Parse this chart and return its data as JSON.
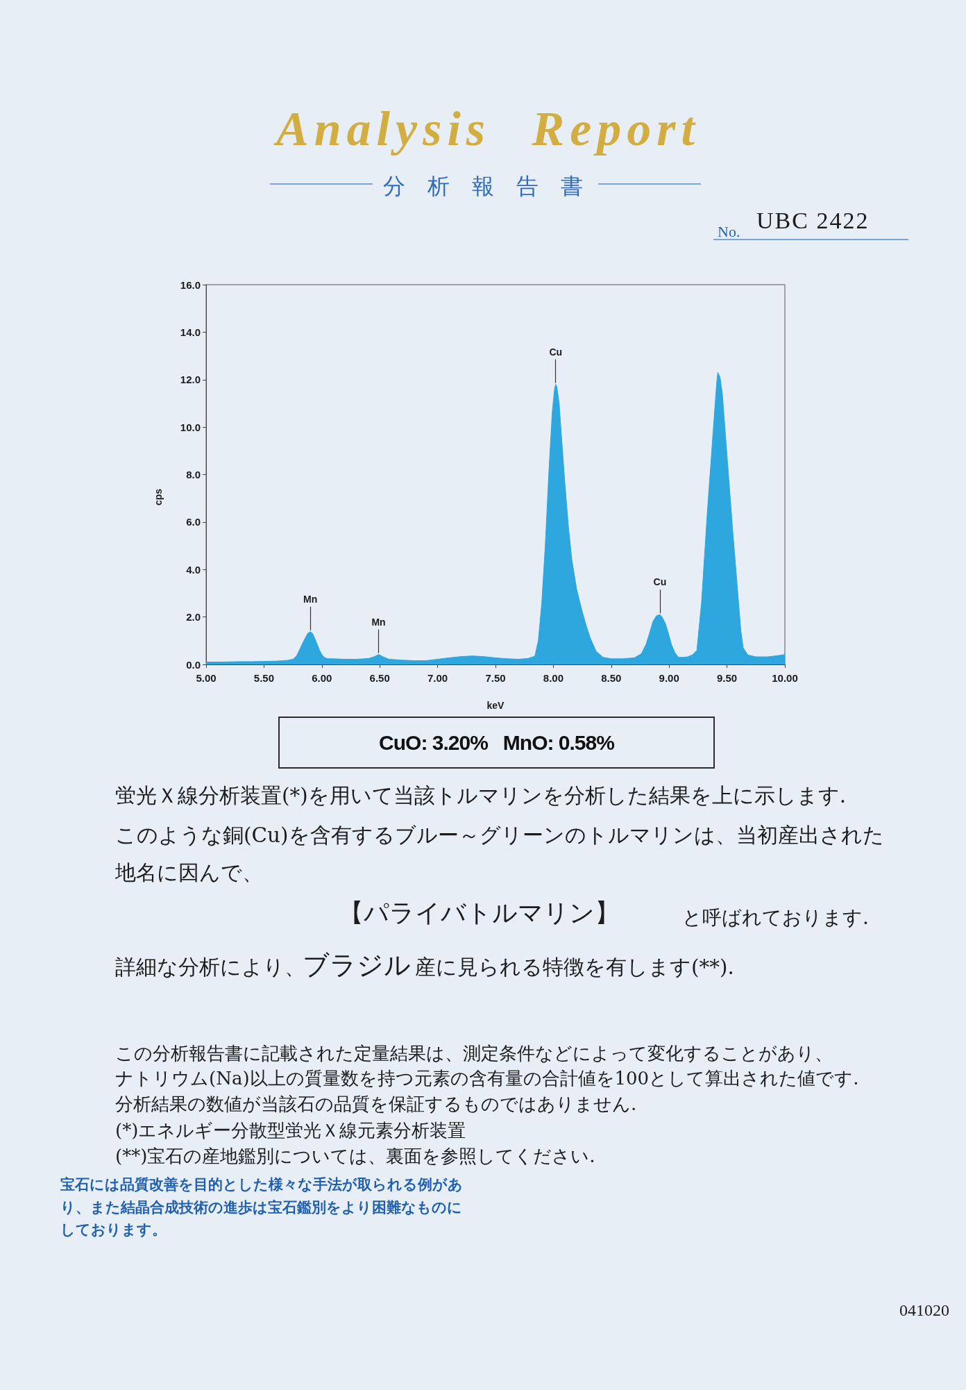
{
  "chart_data": {
    "type": "area",
    "title": "Analysis Report",
    "subtitle": "分析報告書",
    "xlabel": "keV",
    "ylabel": "cps",
    "color": "#2ea6de",
    "grid": false,
    "x": [
      5.0,
      5.1,
      5.2,
      5.3,
      5.4,
      5.5,
      5.6,
      5.7,
      5.75,
      5.78,
      5.8,
      5.82,
      5.84,
      5.86,
      5.88,
      5.9,
      5.92,
      5.94,
      5.96,
      5.98,
      6.0,
      6.02,
      6.05,
      6.1,
      6.2,
      6.3,
      6.4,
      6.45,
      6.49,
      6.53,
      6.58,
      6.7,
      6.8,
      6.9,
      7.0,
      7.1,
      7.2,
      7.3,
      7.4,
      7.5,
      7.6,
      7.7,
      7.78,
      7.84,
      7.87,
      7.9,
      7.93,
      7.96,
      7.99,
      8.01,
      8.02,
      8.03,
      8.05,
      8.07,
      8.1,
      8.13,
      8.16,
      8.2,
      8.24,
      8.28,
      8.32,
      8.37,
      8.43,
      8.5,
      8.6,
      8.7,
      8.76,
      8.8,
      8.83,
      8.86,
      8.89,
      8.92,
      8.94,
      8.97,
      9.0,
      9.02,
      9.05,
      9.08,
      9.12,
      9.16,
      9.2,
      9.24,
      9.28,
      9.33,
      9.38,
      9.41,
      9.42,
      9.44,
      9.46,
      9.5,
      9.55,
      9.59,
      9.62,
      9.64,
      9.68,
      9.75,
      9.85,
      9.95,
      10.0
    ],
    "values": [
      0.1,
      0.1,
      0.11,
      0.12,
      0.12,
      0.13,
      0.14,
      0.17,
      0.22,
      0.35,
      0.54,
      0.75,
      0.96,
      1.15,
      1.32,
      1.38,
      1.3,
      1.08,
      0.85,
      0.6,
      0.42,
      0.3,
      0.24,
      0.24,
      0.22,
      0.22,
      0.25,
      0.32,
      0.42,
      0.32,
      0.22,
      0.18,
      0.16,
      0.16,
      0.22,
      0.28,
      0.33,
      0.36,
      0.33,
      0.28,
      0.24,
      0.22,
      0.25,
      0.35,
      1.0,
      2.6,
      5.0,
      8.0,
      10.6,
      11.6,
      11.8,
      11.7,
      11.0,
      9.6,
      7.6,
      5.8,
      4.4,
      3.2,
      2.4,
      1.7,
      1.1,
      0.55,
      0.3,
      0.24,
      0.24,
      0.28,
      0.45,
      0.84,
      1.3,
      1.8,
      2.05,
      2.1,
      2.0,
      1.7,
      1.2,
      0.84,
      0.5,
      0.3,
      0.3,
      0.32,
      0.4,
      0.6,
      2.6,
      6.4,
      9.8,
      11.8,
      12.3,
      12.1,
      11.4,
      8.8,
      5.6,
      3.2,
      1.4,
      0.7,
      0.4,
      0.32,
      0.32,
      0.38,
      0.42
    ],
    "xlim": [
      5,
      10
    ],
    "xticks": [
      {
        "value": 5,
        "label": "5.00"
      },
      {
        "value": 5.5,
        "label": "5.50"
      },
      {
        "value": 6,
        "label": "6.00"
      },
      {
        "value": 6.5,
        "label": "6.50"
      },
      {
        "value": 7,
        "label": "7.00"
      },
      {
        "value": 7.5,
        "label": "7.50"
      },
      {
        "value": 8,
        "label": "8.00"
      },
      {
        "value": 8.5,
        "label": "8.50"
      },
      {
        "value": 9,
        "label": "9.00"
      },
      {
        "value": 9.5,
        "label": "9.50"
      },
      {
        "value": 10,
        "label": "10.00"
      }
    ],
    "ylim": [
      0,
      16
    ],
    "yticks": [
      {
        "value": 0,
        "label": "0.0"
      },
      {
        "value": 2,
        "label": "2.0"
      },
      {
        "value": 4,
        "label": "4.0"
      },
      {
        "value": 6,
        "label": "6.0"
      },
      {
        "value": 8,
        "label": "8.0"
      },
      {
        "value": 10,
        "label": "10.0"
      },
      {
        "value": 12,
        "label": "12.0"
      },
      {
        "value": 14,
        "label": "14.0"
      },
      {
        "value": 16,
        "label": "16.0"
      }
    ],
    "annotations": [
      {
        "text": "Mn",
        "x": 5.9,
        "y": 1.38
      },
      {
        "text": "Mn",
        "x": 6.49,
        "y": 0.42
      },
      {
        "text": "Cu",
        "x": 8.02,
        "y": 11.8
      },
      {
        "text": "Cu",
        "x": 8.92,
        "y": 2.1
      },
      "No.",
      "UBC 2422",
      "CuO: 3.20%   MnO: 0.58%",
      "蛍光Ｘ線分析装置(*)を用いて当該トルマリンを分析した結果を上に示します.",
      "このような銅(Cu)を含有するブルー～グリーンのトルマリンは、当初産出された",
      "地名に因んで、",
      "【パライバトルマリン】",
      "と呼ばれております.",
      "詳細な分析により、",
      "ブラジル",
      "産に見られる特徴を有します(**).",
      "この分析報告書に記載された定量結果は、測定条件などによって変化することがあり、",
      "ナトリウム(Na)以上の質量数を持つ元素の含有量の合計値を100として算出された値です.",
      "分析結果の数値が当該石の品質を保証するものではありません.",
      "(*)エネルギー分散型蛍光Ｘ線元素分析装置",
      "(**)宝石の産地鑑別については、裏面を参照してください.",
      "宝石には品質改善を目的とした様々な手法が取られる例があり、また結晶合成技術の進歩は宝石鑑別をより困難なものにしております。",
      "041020"
    ]
  }
}
